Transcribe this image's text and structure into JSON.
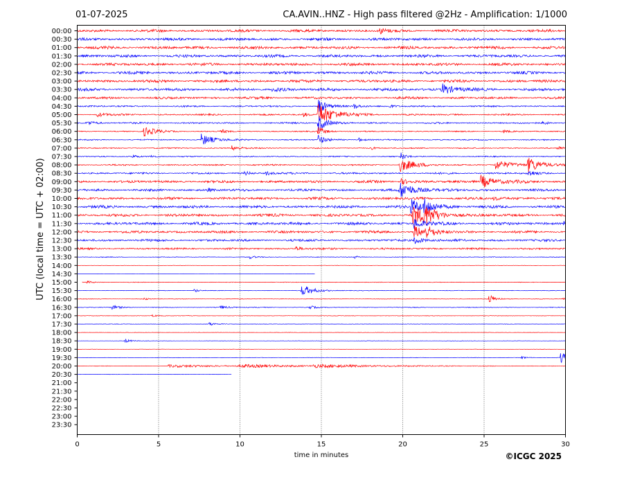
{
  "header": {
    "date": "01-07-2025",
    "title": "CA.AVIN..HNZ - High pass filtered @2Hz - Amplification: 1/1000"
  },
  "footer": {
    "copyright": "©ICGC 2025"
  },
  "colors": {
    "series_even": "#ff0000",
    "series_odd": "#0000ff",
    "axis": "#000000",
    "grid": "#000000"
  },
  "chart_data": {
    "type": "line",
    "chart_subtype": "helicorder",
    "xlabel": "time in minutes",
    "ylabel": "UTC (local time = UTC + 02:00)",
    "xlim": [
      0,
      30
    ],
    "x_ticks": [
      0,
      5,
      10,
      15,
      20,
      25,
      30
    ],
    "vertical_grid_at": [
      5,
      10,
      15,
      20,
      25
    ],
    "grid": "vertical dotted",
    "row_labels": [
      "00:00",
      "00:30",
      "01:00",
      "01:30",
      "02:00",
      "02:30",
      "03:00",
      "03:30",
      "04:00",
      "04:30",
      "05:00",
      "05:30",
      "06:00",
      "06:30",
      "07:00",
      "07:30",
      "08:00",
      "08:30",
      "09:00",
      "09:30",
      "10:00",
      "10:30",
      "11:00",
      "11:30",
      "12:00",
      "12:30",
      "13:00",
      "13:30",
      "14:00",
      "14:30",
      "15:00",
      "15:30",
      "16:00",
      "16:30",
      "17:00",
      "17:30",
      "18:00",
      "18:30",
      "19:00",
      "19:30",
      "20:00",
      "20:30",
      "21:00",
      "21:30",
      "22:00",
      "22:30",
      "23:00",
      "23:30"
    ],
    "row_color_rule": "alternating red (even rows) / blue (odd rows)",
    "traces": [
      {
        "row": "00:00",
        "noise": 0.6,
        "start": 0,
        "end": 30,
        "events": [
          {
            "t": 18.6,
            "amp": 1.5,
            "dur": 0.3
          }
        ]
      },
      {
        "row": "00:30",
        "noise": 0.6,
        "start": 0,
        "end": 30,
        "events": []
      },
      {
        "row": "01:00",
        "noise": 0.6,
        "start": 0,
        "end": 30,
        "events": []
      },
      {
        "row": "01:30",
        "noise": 0.6,
        "start": 0,
        "end": 30,
        "events": []
      },
      {
        "row": "02:00",
        "noise": 0.6,
        "start": 0,
        "end": 30,
        "events": []
      },
      {
        "row": "02:30",
        "noise": 0.6,
        "start": 0,
        "end": 30,
        "events": []
      },
      {
        "row": "03:00",
        "noise": 0.6,
        "start": 0,
        "end": 30,
        "events": []
      },
      {
        "row": "03:30",
        "noise": 0.6,
        "start": 0,
        "end": 30,
        "events": [
          {
            "t": 12.0,
            "amp": 1.2,
            "dur": 0.5
          },
          {
            "t": 22.4,
            "amp": 3.0,
            "dur": 0.6
          }
        ]
      },
      {
        "row": "04:00",
        "noise": 0.5,
        "start": 0,
        "end": 30,
        "events": []
      },
      {
        "row": "04:30",
        "noise": 0.35,
        "start": 0,
        "end": 30,
        "events": [
          {
            "t": 14.8,
            "amp": 4.0,
            "dur": 0.4
          },
          {
            "t": 17.0,
            "amp": 1.2,
            "dur": 0.4
          },
          {
            "t": 19.2,
            "amp": 0.8,
            "dur": 0.3
          }
        ]
      },
      {
        "row": "05:00",
        "noise": 0.35,
        "start": 0,
        "end": 30,
        "events": [
          {
            "t": 1.2,
            "amp": 1.0,
            "dur": 0.5
          },
          {
            "t": 14.8,
            "amp": 5.5,
            "dur": 0.9
          },
          {
            "t": 13.9,
            "amp": 1.0,
            "dur": 0.3
          }
        ]
      },
      {
        "row": "05:30",
        "noise": 0.35,
        "start": 0,
        "end": 30,
        "events": [
          {
            "t": 0.6,
            "amp": 1.0,
            "dur": 0.5
          },
          {
            "t": 14.8,
            "amp": 4.0,
            "dur": 0.5
          },
          {
            "t": 28.6,
            "amp": 0.9,
            "dur": 0.3
          }
        ]
      },
      {
        "row": "06:00",
        "noise": 0.25,
        "start": 0,
        "end": 30,
        "events": [
          {
            "t": 4.1,
            "amp": 2.3,
            "dur": 0.7
          },
          {
            "t": 8.8,
            "amp": 0.9,
            "dur": 0.4
          },
          {
            "t": 14.8,
            "amp": 2.5,
            "dur": 0.4
          },
          {
            "t": 26.2,
            "amp": 0.8,
            "dur": 0.3
          }
        ]
      },
      {
        "row": "06:30",
        "noise": 0.25,
        "start": 0,
        "end": 30,
        "events": [
          {
            "t": 7.6,
            "amp": 3.0,
            "dur": 0.7
          },
          {
            "t": 14.8,
            "amp": 2.5,
            "dur": 0.4
          },
          {
            "t": 17.3,
            "amp": 1.0,
            "dur": 0.3
          }
        ]
      },
      {
        "row": "07:00",
        "noise": 0.25,
        "start": 0,
        "end": 30,
        "events": [
          {
            "t": 9.5,
            "amp": 1.2,
            "dur": 0.5
          },
          {
            "t": 18.0,
            "amp": 0.8,
            "dur": 0.3
          },
          {
            "t": 29.5,
            "amp": 0.9,
            "dur": 0.3
          }
        ]
      },
      {
        "row": "07:30",
        "noise": 0.25,
        "start": 0,
        "end": 30,
        "events": [
          {
            "t": 3.4,
            "amp": 0.8,
            "dur": 0.3
          },
          {
            "t": 4.5,
            "amp": 0.8,
            "dur": 0.3
          },
          {
            "t": 19.9,
            "amp": 2.0,
            "dur": 0.3
          }
        ]
      },
      {
        "row": "08:00",
        "noise": 0.3,
        "start": 0,
        "end": 30,
        "events": [
          {
            "t": 19.8,
            "amp": 3.5,
            "dur": 0.8
          },
          {
            "t": 25.7,
            "amp": 2.2,
            "dur": 0.9
          },
          {
            "t": 27.7,
            "amp": 4.0,
            "dur": 0.7
          }
        ]
      },
      {
        "row": "08:30",
        "noise": 0.4,
        "start": 0,
        "end": 30,
        "events": [
          {
            "t": 10.3,
            "amp": 1.0,
            "dur": 0.3
          },
          {
            "t": 11.6,
            "amp": 1.0,
            "dur": 0.3
          },
          {
            "t": 27.7,
            "amp": 1.5,
            "dur": 0.4
          }
        ]
      },
      {
        "row": "09:00",
        "noise": 0.55,
        "start": 0,
        "end": 30,
        "events": [
          {
            "t": 24.8,
            "amp": 3.2,
            "dur": 0.8
          },
          {
            "t": 19.9,
            "amp": 1.5,
            "dur": 0.4
          }
        ]
      },
      {
        "row": "09:30",
        "noise": 0.5,
        "start": 0,
        "end": 30,
        "events": [
          {
            "t": 19.8,
            "amp": 3.8,
            "dur": 0.9
          },
          {
            "t": 8.0,
            "amp": 0.9,
            "dur": 0.3
          }
        ]
      },
      {
        "row": "10:00",
        "noise": 0.55,
        "start": 0,
        "end": 30,
        "events": [
          {
            "t": 25.6,
            "amp": 1.0,
            "dur": 0.5
          }
        ]
      },
      {
        "row": "10:30",
        "noise": 0.6,
        "start": 0,
        "end": 30,
        "events": [
          {
            "t": 20.5,
            "amp": 3.5,
            "dur": 0.7
          },
          {
            "t": 21.3,
            "amp": 3.0,
            "dur": 0.6
          }
        ]
      },
      {
        "row": "11:00",
        "noise": 0.6,
        "start": 0,
        "end": 30,
        "events": [
          {
            "t": 20.6,
            "amp": 4.5,
            "dur": 0.8
          },
          {
            "t": 21.3,
            "amp": 4.0,
            "dur": 0.7
          }
        ]
      },
      {
        "row": "11:30",
        "noise": 0.6,
        "start": 0,
        "end": 30,
        "events": [
          {
            "t": 20.7,
            "amp": 2.5,
            "dur": 0.6
          },
          {
            "t": 29.9,
            "amp": 1.0,
            "dur": 0.3
          }
        ]
      },
      {
        "row": "12:00",
        "noise": 0.55,
        "start": 0,
        "end": 30,
        "events": [
          {
            "t": 20.7,
            "amp": 3.0,
            "dur": 0.6
          },
          {
            "t": 21.4,
            "amp": 2.5,
            "dur": 0.5
          }
        ]
      },
      {
        "row": "12:30",
        "noise": 0.5,
        "start": 0,
        "end": 30,
        "events": [
          {
            "t": 20.7,
            "amp": 2.0,
            "dur": 0.5
          }
        ]
      },
      {
        "row": "13:00",
        "noise": 0.4,
        "start": 0,
        "end": 30,
        "events": [
          {
            "t": 13.4,
            "amp": 1.0,
            "dur": 0.4
          }
        ]
      },
      {
        "row": "13:30",
        "noise": 0.15,
        "start": 0,
        "end": 30,
        "events": [
          {
            "t": 10.6,
            "amp": 0.8,
            "dur": 0.3
          },
          {
            "t": 17.0,
            "amp": 0.7,
            "dur": 0.3
          }
        ]
      },
      {
        "row": "14:00",
        "noise": 0.08,
        "start": 0,
        "end": 30,
        "events": []
      },
      {
        "row": "14:30",
        "noise": 0.04,
        "start": 0,
        "end": 14.6,
        "events": []
      },
      {
        "row": "15:00",
        "noise": 0.12,
        "start": 0.3,
        "end": 30,
        "events": [
          {
            "t": 0.6,
            "amp": 0.7,
            "dur": 0.4
          }
        ]
      },
      {
        "row": "15:30",
        "noise": 0.12,
        "start": 0,
        "end": 30,
        "events": [
          {
            "t": 7.2,
            "amp": 1.2,
            "dur": 0.2
          },
          {
            "t": 13.8,
            "amp": 2.7,
            "dur": 0.7
          }
        ]
      },
      {
        "row": "16:00",
        "noise": 0.12,
        "start": 0,
        "end": 30,
        "events": [
          {
            "t": 4.1,
            "amp": 0.8,
            "dur": 0.2
          },
          {
            "t": 25.3,
            "amp": 2.3,
            "dur": 0.4
          },
          {
            "t": 29.8,
            "amp": 0.8,
            "dur": 0.3
          }
        ]
      },
      {
        "row": "16:30",
        "noise": 0.15,
        "start": 0,
        "end": 30,
        "events": [
          {
            "t": 2.1,
            "amp": 1.1,
            "dur": 0.5
          },
          {
            "t": 8.8,
            "amp": 0.9,
            "dur": 0.5
          },
          {
            "t": 14.2,
            "amp": 1.2,
            "dur": 0.3
          }
        ]
      },
      {
        "row": "17:00",
        "noise": 0.1,
        "start": 0,
        "end": 30,
        "events": [
          {
            "t": 4.6,
            "amp": 0.6,
            "dur": 0.3
          }
        ]
      },
      {
        "row": "17:30",
        "noise": 0.08,
        "start": 0,
        "end": 30,
        "events": [
          {
            "t": 8.1,
            "amp": 0.9,
            "dur": 0.4
          }
        ]
      },
      {
        "row": "18:00",
        "noise": 0.08,
        "start": 0,
        "end": 30,
        "events": []
      },
      {
        "row": "18:30",
        "noise": 0.08,
        "start": 0,
        "end": 30,
        "events": [
          {
            "t": 2.9,
            "amp": 0.9,
            "dur": 0.4
          }
        ]
      },
      {
        "row": "19:00",
        "noise": 0.08,
        "start": 0,
        "end": 30,
        "events": []
      },
      {
        "row": "19:30",
        "noise": 0.1,
        "start": 0,
        "end": 30,
        "events": [
          {
            "t": 27.3,
            "amp": 0.7,
            "dur": 0.3
          },
          {
            "t": 29.7,
            "amp": 2.6,
            "dur": 0.6
          }
        ]
      },
      {
        "row": "20:00",
        "noise": 0.1,
        "start": 0,
        "end": 30,
        "events": [
          {
            "t": 5.6,
            "amp": 0.6,
            "dur": 4.0
          },
          {
            "t": 10.0,
            "amp": 0.6,
            "dur": 4.0
          },
          {
            "t": 14.5,
            "amp": 0.6,
            "dur": 4.0
          }
        ]
      },
      {
        "row": "20:30",
        "noise": 0.06,
        "start": 0,
        "end": 9.5,
        "events": []
      }
    ]
  }
}
